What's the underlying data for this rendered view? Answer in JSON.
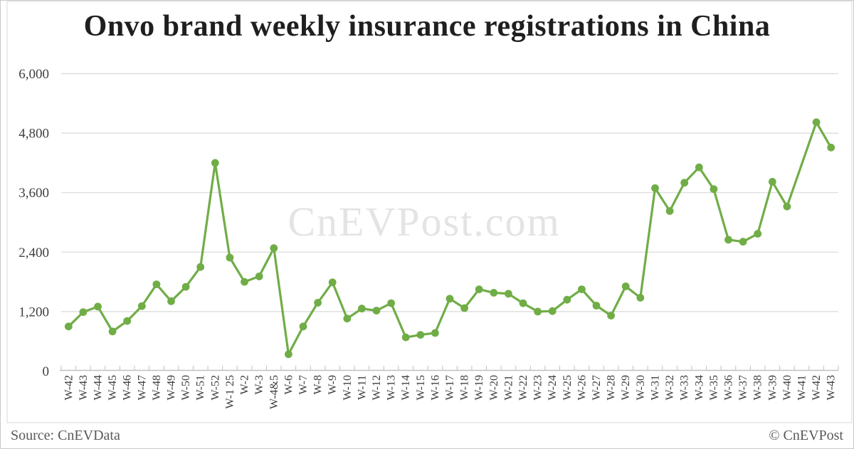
{
  "title": "Onvo brand weekly insurance registrations in China",
  "watermark": "CnEVPost.com",
  "footer": {
    "source": "Source: CnEVData",
    "copyright": "© CnEVPost"
  },
  "colors": {
    "line": "#70ad47",
    "marker": "#70ad47",
    "gridline": "#d9d9d9",
    "axis": "#bfbfbf",
    "title_text": "#1f1f1f",
    "label_text": "#404040",
    "footer_text": "#595959",
    "watermark_text": "#e4e4e4",
    "frame": "#d9d9d9",
    "background": "#ffffff"
  },
  "chart_data": {
    "type": "line",
    "title": "Onvo brand weekly insurance registrations in China",
    "series_name": "Onvo weekly insurance registrations",
    "categories": [
      "W-42",
      "W-43",
      "W-44",
      "W-45",
      "W-46",
      "W-47",
      "W-48",
      "W-49",
      "W-50",
      "W-51",
      "W-52",
      "W-1 25",
      "W-2",
      "W-3",
      "W-4&5",
      "W-6",
      "W-7",
      "W-8",
      "W-9",
      "W-10",
      "W-11",
      "W-12",
      "W-13",
      "W-14",
      "W-15",
      "W-16",
      "W-17",
      "W-18",
      "W-19",
      "W-20",
      "W-21",
      "W-22",
      "W-23",
      "W-24",
      "W-25",
      "W-26",
      "W-27",
      "W-28",
      "W-29",
      "W-30",
      "W-31",
      "W-32",
      "W-33",
      "W-34",
      "W-35",
      "W-36",
      "W-37",
      "W-38",
      "W-39",
      "W-40",
      "W-41",
      "W-42",
      "W-43"
    ],
    "values": [
      900,
      1190,
      1300,
      800,
      1010,
      1310,
      1750,
      1410,
      1700,
      2100,
      4200,
      2290,
      1800,
      1910,
      2480,
      340,
      900,
      1380,
      1790,
      1060,
      1260,
      1220,
      1370,
      680,
      730,
      770,
      1460,
      1270,
      1650,
      1580,
      1560,
      1370,
      1200,
      1210,
      1440,
      1650,
      1320,
      1120,
      1710,
      1480,
      3690,
      3230,
      3800,
      4110,
      3670,
      2650,
      2610,
      2770,
      3820,
      3320,
      null,
      5020,
      4510
    ],
    "missing_points": [
      "W-41"
    ],
    "xlabel": "",
    "ylabel": "",
    "ylim": [
      0,
      6000
    ],
    "ytick_interval": 1200,
    "ytick_labels": [
      "0",
      "1,200",
      "2,400",
      "3,600",
      "4,800",
      "6,000"
    ],
    "grid": "horizontal",
    "legend_position": "none",
    "marker": "circle",
    "x_labels_rotated_degrees": 90
  }
}
